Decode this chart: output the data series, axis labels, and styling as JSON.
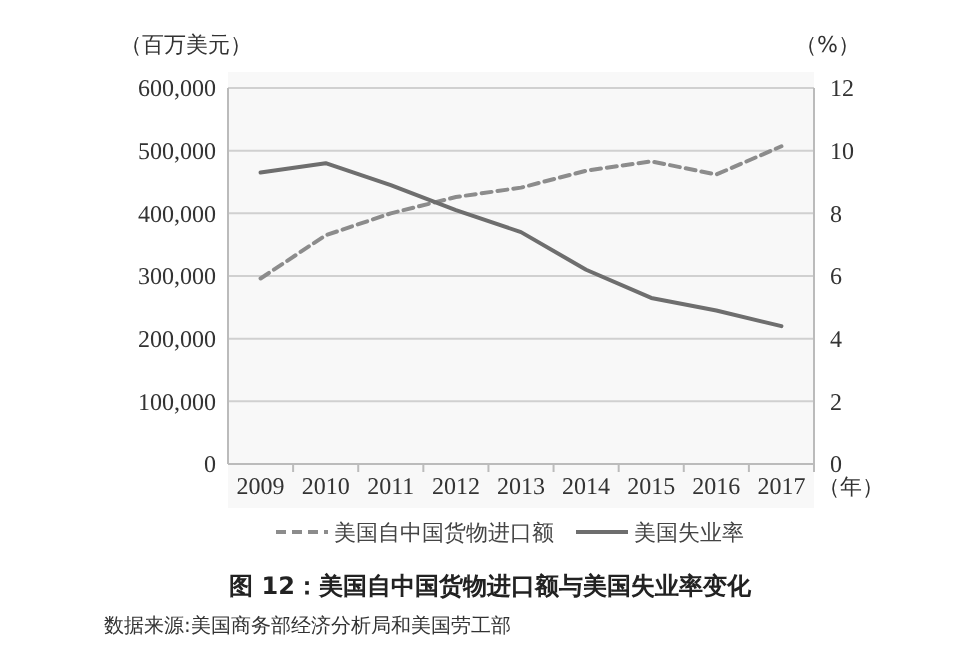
{
  "chart_data": {
    "type": "line",
    "title": "图 12：美国自中国货物进口额与美国失业率变化",
    "ylabel": "（百万美元）",
    "y2label": "（%）",
    "xlabel": "（年）",
    "annotations": [
      "数据来源:美国商务部经济分析局和美国劳工部"
    ],
    "categories": [
      "2009",
      "2010",
      "2011",
      "2012",
      "2013",
      "2014",
      "2015",
      "2016",
      "2017"
    ],
    "series": [
      {
        "name": "美国自中国货物进口额",
        "color": "#8c8c8c",
        "line_style": "dashed",
        "values": [
          296000,
          365000,
          400000,
          426000,
          441000,
          468000,
          483000,
          462000,
          507000
        ]
      },
      {
        "name": "美国失业率",
        "color": "#6e6e6e",
        "line_style": "solid",
        "axis": "y2",
        "values": [
          9.3,
          9.6,
          8.9,
          8.1,
          7.4,
          6.2,
          5.3,
          4.9,
          4.4
        ]
      }
    ],
    "ylim": [
      0,
      600000
    ],
    "yticks": [
      0,
      {
        "value": 100000,
        "label": "100,000"
      },
      {
        "value": 200000,
        "label": "200,000"
      },
      {
        "value": 300000,
        "label": "300,000"
      },
      {
        "value": 400000,
        "label": "400,000"
      },
      {
        "value": 500000,
        "label": "500,000"
      },
      {
        "value": 600000,
        "label": "600,000"
      }
    ],
    "y2lim": [
      0,
      12
    ],
    "y2ticks": [
      0,
      2,
      4,
      6,
      8,
      10,
      12
    ],
    "grid": "y",
    "legend": "bottom",
    "marker": "none"
  }
}
